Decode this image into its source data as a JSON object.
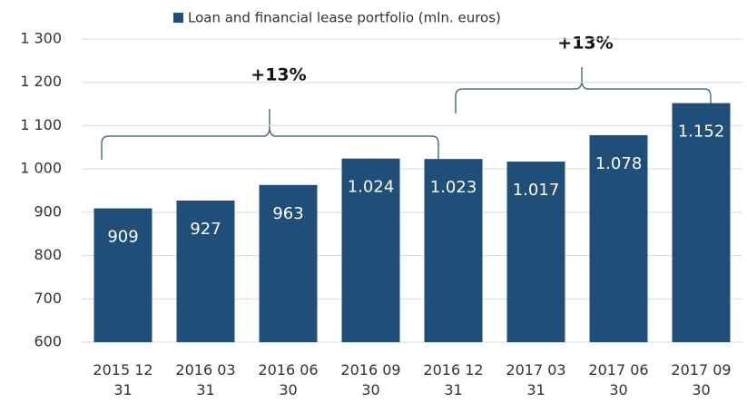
{
  "chart_data": {
    "type": "bar",
    "categories": [
      "2015 12 31",
      "2016 03 31",
      "2016 06 30",
      "2016 09 30",
      "2016 12 31",
      "2017 03 31",
      "2017 06 30",
      "2017 09 30"
    ],
    "series": [
      {
        "name": "Loan and financial lease portfolio (mln. euros)",
        "color": "#1f4e79",
        "values": [
          909,
          927,
          963,
          1024,
          1023,
          1017,
          1078,
          1152
        ],
        "value_labels": [
          "909",
          "927",
          "963",
          "1.024",
          "1.023",
          "1.017",
          "1.078",
          "1.152"
        ]
      }
    ],
    "ylim": [
      600,
      1300
    ],
    "yticks": [
      600,
      700,
      800,
      900,
      {
        "value": 1000,
        "label": "1 000"
      },
      {
        "value": 1100,
        "label": "1 100"
      },
      {
        "value": 1200,
        "label": "1 200"
      },
      {
        "value": 1300,
        "label": "1 300"
      }
    ],
    "grid": true,
    "legend": "top",
    "annotations": [
      {
        "text": "+13%"
      },
      {
        "text": "+13%"
      }
    ]
  }
}
